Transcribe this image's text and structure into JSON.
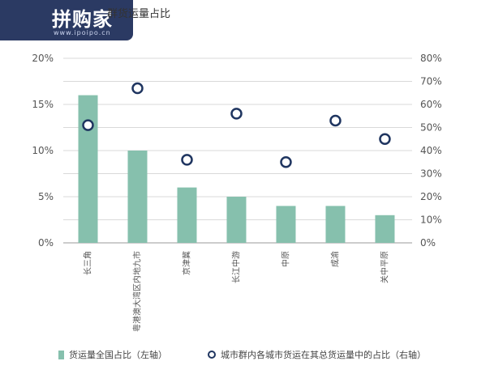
{
  "logo": {
    "text": "拼购家",
    "url": "www.ipoipo.cn"
  },
  "chart_data": {
    "type": "bar",
    "title": "群货运量占比",
    "categories": [
      "长三角",
      "粤港澳大湾区内地九市",
      "京津冀",
      "长江中游",
      "中原",
      "成渝",
      "关中平原"
    ],
    "series": [
      {
        "name": "货运量全国占比（左轴）",
        "type": "bar",
        "axis": "left",
        "color": "#86c0ad",
        "values": [
          16,
          10,
          6,
          5,
          4,
          4,
          3
        ]
      },
      {
        "name": "城市群内各城市货运在其总货运量中的占比（右轴）",
        "type": "scatter",
        "axis": "right",
        "color": "#1f3560",
        "values": [
          51,
          67,
          36,
          56,
          35,
          53,
          45
        ]
      }
    ],
    "y_left": {
      "lim": [
        0,
        20
      ],
      "ticks": [
        "0%",
        "5%",
        "10%",
        "15%",
        "20%"
      ]
    },
    "y_right": {
      "lim": [
        0,
        80
      ],
      "ticks": [
        "0%",
        "10%",
        "20%",
        "30%",
        "40%",
        "50%",
        "60%",
        "70%",
        "80%"
      ]
    },
    "grid": true,
    "legend": "bottom"
  }
}
